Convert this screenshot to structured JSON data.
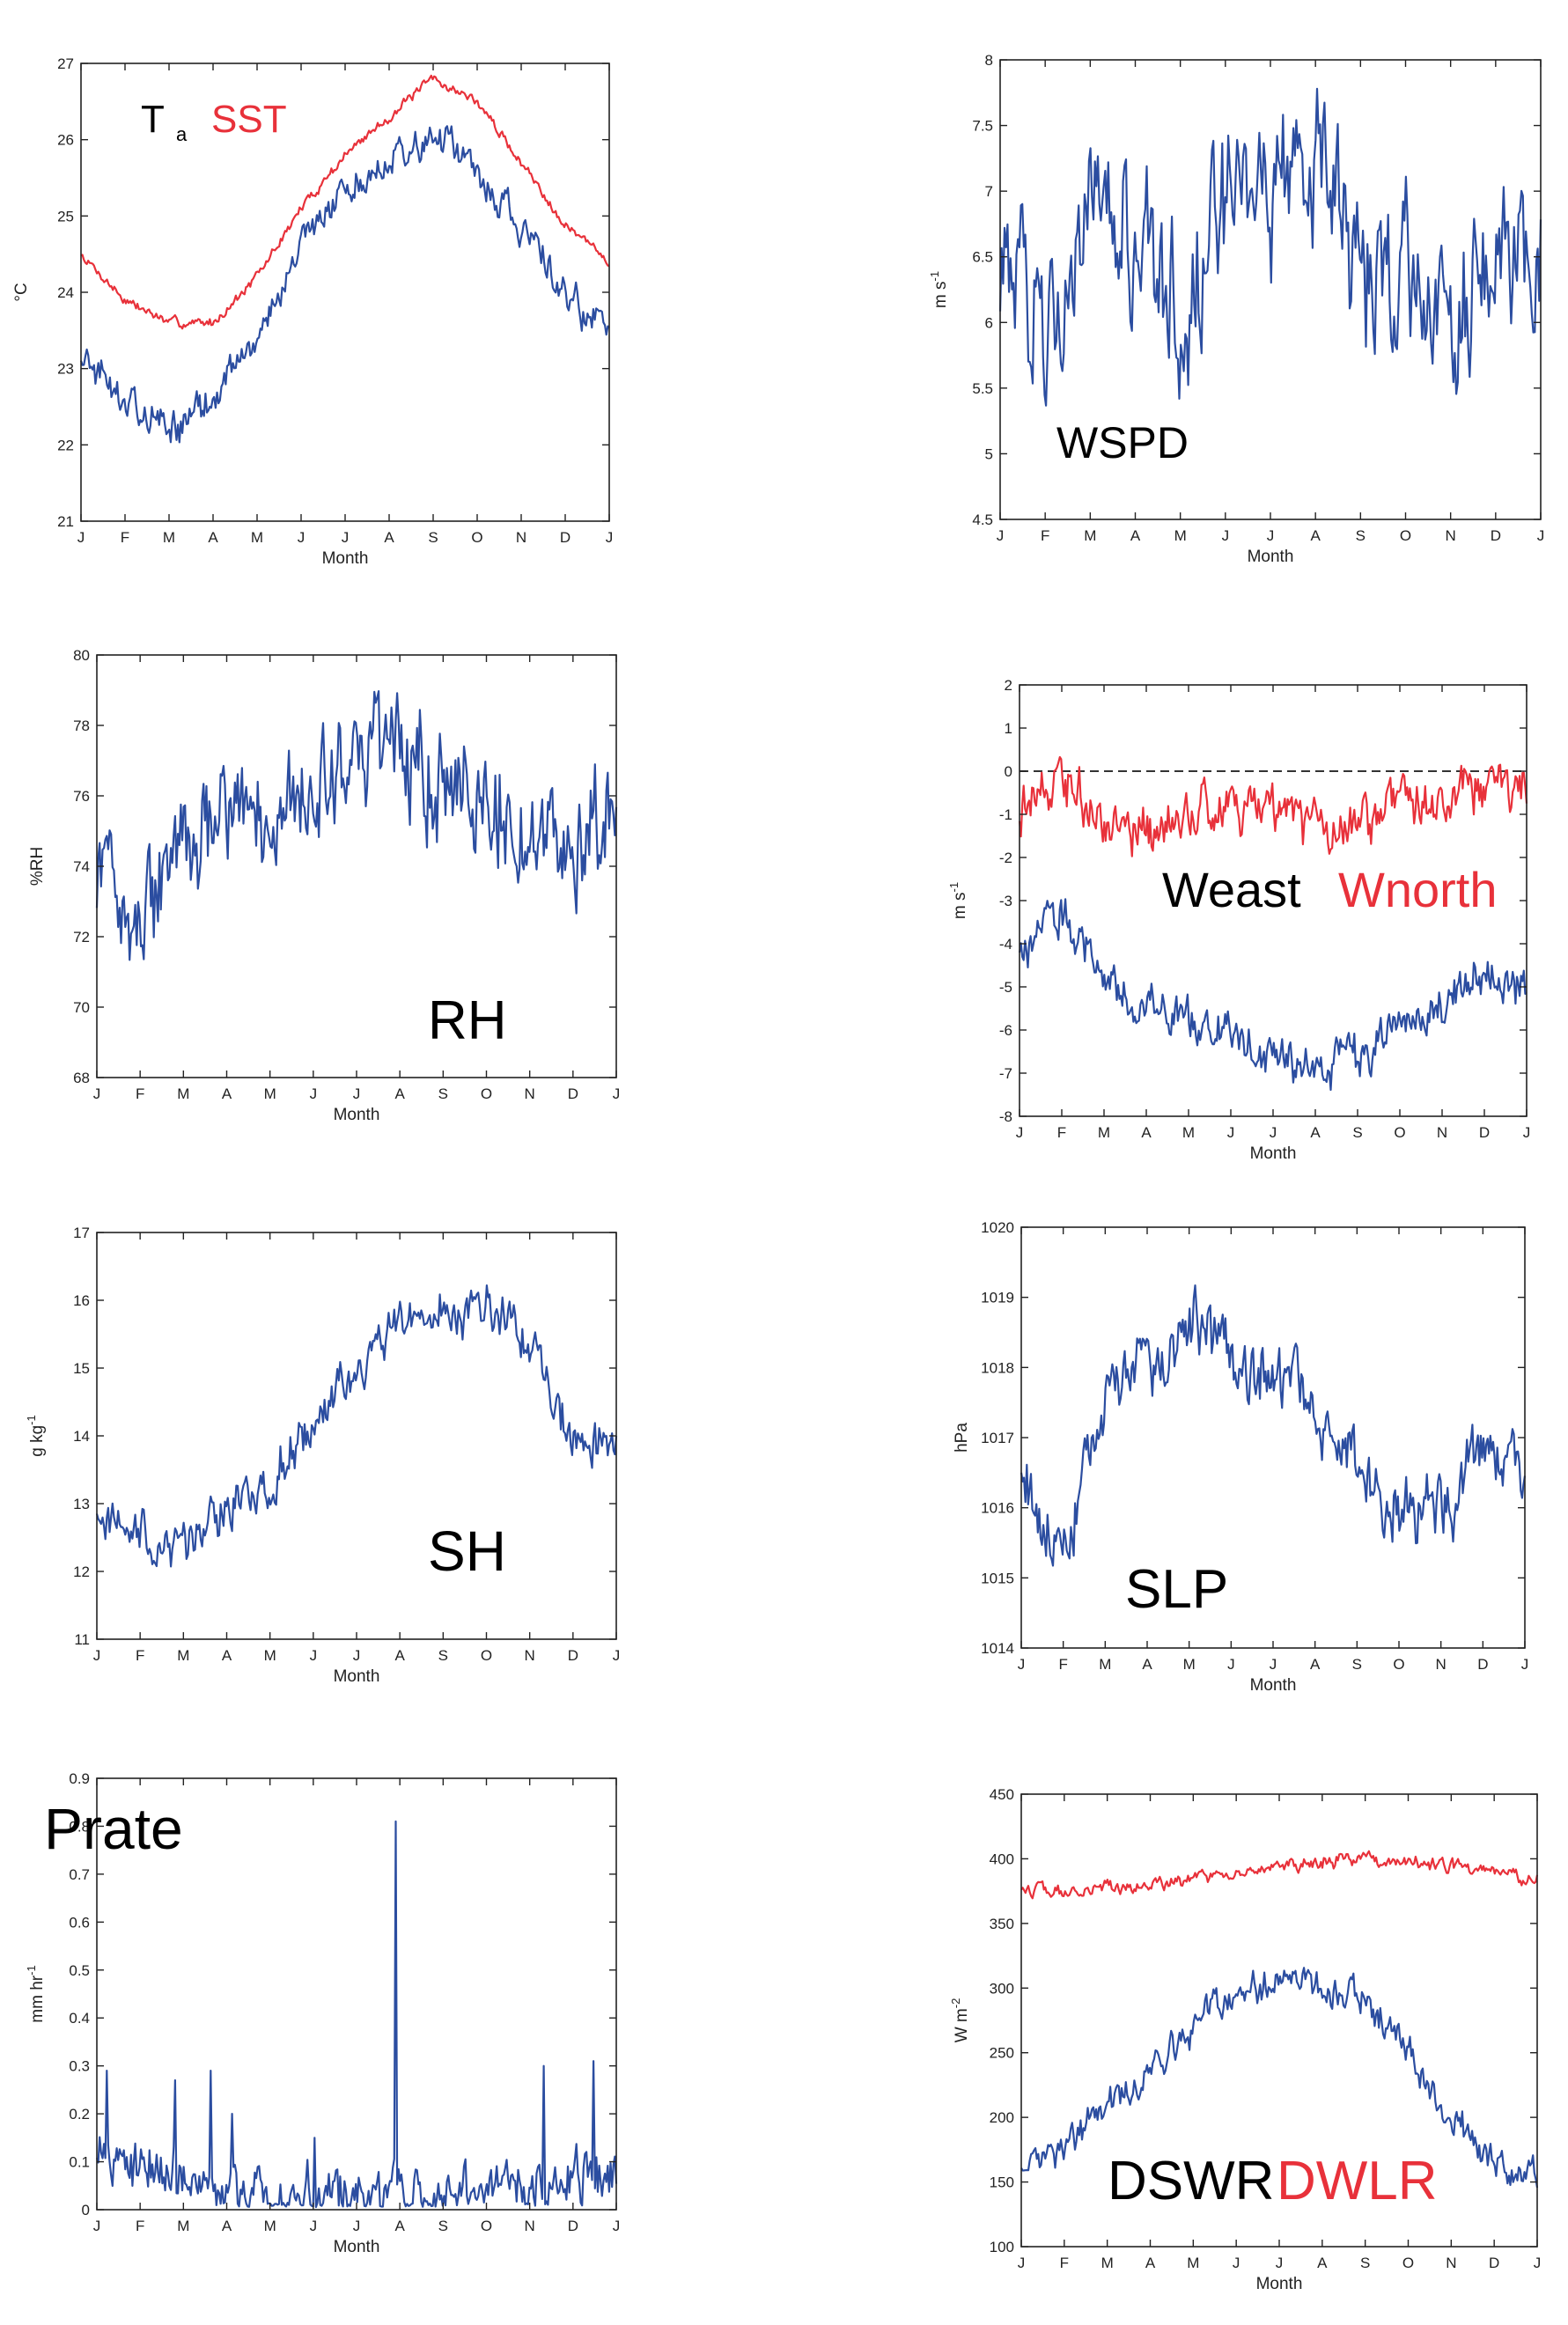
{
  "colors": {
    "blue": "#2B4DA0",
    "red": "#E8313A",
    "axis": "#222222",
    "text": "#000000"
  },
  "months": [
    "J",
    "F",
    "M",
    "A",
    "M",
    "J",
    "J",
    "A",
    "S",
    "O",
    "N",
    "D",
    "J"
  ],
  "panels": [
    {
      "id": "ta-sst",
      "xlabel": "Month",
      "ylabel": "°C",
      "ylabel_sup": "",
      "yticks": [
        "21",
        "22",
        "23",
        "24",
        "25",
        "26",
        "27"
      ],
      "label_parts": [
        {
          "text": "T",
          "color": "#000000"
        },
        {
          "text": "a",
          "color": "#000000",
          "sub": true
        },
        {
          "text": "SST",
          "color": "#E8313A"
        }
      ]
    },
    {
      "id": "wspd",
      "xlabel": "Month",
      "ylabel": "m s",
      "ylabel_sup": "-1",
      "yticks": [
        "4.5",
        "5",
        "5.5",
        "6",
        "6.5",
        "7",
        "7.5",
        "8"
      ],
      "label_parts": [
        {
          "text": "WSPD",
          "color": "#000000"
        }
      ]
    },
    {
      "id": "rh",
      "xlabel": "Month",
      "ylabel": "%RH",
      "ylabel_sup": "",
      "yticks": [
        "68",
        "70",
        "72",
        "74",
        "76",
        "78",
        "80"
      ],
      "label_parts": [
        {
          "text": "RH",
          "color": "#000000"
        }
      ]
    },
    {
      "id": "winds",
      "xlabel": "Month",
      "ylabel": "m s",
      "ylabel_sup": "-1",
      "yticks": [
        "-8",
        "-7",
        "-6",
        "-5",
        "-4",
        "-3",
        "-2",
        "-1",
        "0",
        "1",
        "2"
      ],
      "label_parts": [
        {
          "text": "Weast",
          "color": "#000000"
        },
        {
          "text": "Wnorth",
          "color": "#E8313A"
        }
      ]
    },
    {
      "id": "sh",
      "xlabel": "Month",
      "ylabel": "g kg",
      "ylabel_sup": "-1",
      "yticks": [
        "11",
        "12",
        "13",
        "14",
        "15",
        "16",
        "17"
      ],
      "label_parts": [
        {
          "text": "SH",
          "color": "#000000"
        }
      ]
    },
    {
      "id": "slp",
      "xlabel": "Month",
      "ylabel": "hPa",
      "ylabel_sup": "",
      "yticks": [
        "1014",
        "1015",
        "1016",
        "1017",
        "1018",
        "1019",
        "1020"
      ],
      "label_parts": [
        {
          "text": "SLP",
          "color": "#000000"
        }
      ]
    },
    {
      "id": "prate",
      "xlabel": "Month",
      "ylabel": "mm hr",
      "ylabel_sup": "-1",
      "yticks": [
        "0",
        "0.1",
        "0.2",
        "0.3",
        "0.4",
        "0.5",
        "0.6",
        "0.7",
        "0.8",
        "0.9"
      ],
      "label_parts": [
        {
          "text": "Prate",
          "color": "#000000"
        }
      ]
    },
    {
      "id": "rad",
      "xlabel": "Month",
      "ylabel": "W m",
      "ylabel_sup": "-2",
      "yticks": [
        "100",
        "150",
        "200",
        "250",
        "300",
        "350",
        "400",
        "450"
      ],
      "label_parts": [
        {
          "text": "DSWR",
          "color": "#000000"
        },
        {
          "text": "DWLR",
          "color": "#E8313A"
        }
      ]
    }
  ],
  "chart_data": [
    {
      "type": "line",
      "x_categories": [
        "J",
        "F",
        "M",
        "A",
        "M",
        "J",
        "J",
        "A",
        "S",
        "O",
        "N",
        "D",
        "J"
      ],
      "xlabel": "Month",
      "ylabel": "°C",
      "ylim": [
        21,
        27
      ],
      "series": [
        {
          "name": "SST",
          "color": "#E8313A",
          "noise": 0.05,
          "values": [
            24.5,
            23.9,
            23.6,
            23.6,
            24.2,
            25.1,
            25.8,
            26.3,
            26.8,
            26.5,
            25.7,
            24.9,
            24.4
          ]
        },
        {
          "name": "Ta",
          "color": "#2B4DA0",
          "noise": 0.18,
          "values": [
            23.2,
            22.6,
            22.2,
            22.6,
            23.4,
            24.6,
            25.4,
            25.8,
            26.0,
            25.6,
            24.8,
            24.0,
            23.5
          ]
        }
      ]
    },
    {
      "type": "line",
      "x_categories": [
        "J",
        "F",
        "M",
        "A",
        "M",
        "J",
        "J",
        "A",
        "S",
        "O",
        "N",
        "D",
        "J"
      ],
      "xlabel": "Month",
      "ylabel": "m s-1",
      "ylim": [
        4.5,
        8
      ],
      "series": [
        {
          "name": "WSPD",
          "color": "#2B4DA0",
          "noise": 0.45,
          "values": [
            6.4,
            6.1,
            6.8,
            6.5,
            6.2,
            6.7,
            7.1,
            7.2,
            6.4,
            6.4,
            6.1,
            6.6,
            6.5
          ]
        }
      ]
    },
    {
      "type": "line",
      "x_categories": [
        "J",
        "F",
        "M",
        "A",
        "M",
        "J",
        "J",
        "A",
        "S",
        "O",
        "N",
        "D",
        "J"
      ],
      "xlabel": "Month",
      "ylabel": "%RH",
      "ylim": [
        68,
        80
      ],
      "series": [
        {
          "name": "RH",
          "color": "#2B4DA0",
          "noise": 1.3,
          "values": [
            73.5,
            72.5,
            74.5,
            76.0,
            75.5,
            76.0,
            76.5,
            77.5,
            76.5,
            76.0,
            75.5,
            74.5,
            76.0
          ]
        }
      ]
    },
    {
      "type": "line",
      "x_categories": [
        "J",
        "F",
        "M",
        "A",
        "M",
        "J",
        "J",
        "A",
        "S",
        "O",
        "N",
        "D",
        "J"
      ],
      "xlabel": "Month",
      "ylabel": "m s-1",
      "ylim": [
        -8,
        2
      ],
      "series": [
        {
          "name": "Wnorth",
          "color": "#E8313A",
          "noise": 0.45,
          "values": [
            -1.0,
            0.0,
            -1.2,
            -1.4,
            -1.0,
            -0.8,
            -1.0,
            -1.3,
            -1.2,
            -0.8,
            -0.6,
            -0.4,
            -0.6
          ]
        },
        {
          "name": "Weast",
          "color": "#2B4DA0",
          "noise": 0.4,
          "values": [
            -4.2,
            -3.2,
            -4.8,
            -5.5,
            -5.8,
            -6.2,
            -6.8,
            -7.0,
            -6.6,
            -5.8,
            -5.4,
            -4.6,
            -5.0
          ]
        }
      ]
    },
    {
      "type": "line",
      "x_categories": [
        "J",
        "F",
        "M",
        "A",
        "M",
        "J",
        "J",
        "A",
        "S",
        "O",
        "N",
        "D",
        "J"
      ],
      "xlabel": "Month",
      "ylabel": "g kg-1",
      "ylim": [
        11,
        17
      ],
      "series": [
        {
          "name": "SH",
          "color": "#2B4DA0",
          "noise": 0.28,
          "values": [
            12.9,
            12.6,
            12.3,
            12.9,
            13.4,
            14.2,
            14.9,
            15.7,
            15.9,
            15.9,
            15.3,
            14.0,
            13.8
          ]
        }
      ]
    },
    {
      "type": "line",
      "x_categories": [
        "J",
        "F",
        "M",
        "A",
        "M",
        "J",
        "J",
        "A",
        "S",
        "O",
        "N",
        "D",
        "J"
      ],
      "xlabel": "Month",
      "ylabel": "hPa",
      "ylim": [
        1014,
        1020
      ],
      "series": [
        {
          "name": "SLP",
          "color": "#2B4DA0",
          "noise": 0.38,
          "values": [
            1016.5,
            1015.2,
            1017.5,
            1018.0,
            1018.6,
            1018.1,
            1018.0,
            1017.4,
            1016.5,
            1015.9,
            1016.0,
            1016.8,
            1016.6
          ]
        }
      ]
    },
    {
      "type": "line",
      "x_categories": [
        "J",
        "F",
        "M",
        "A",
        "M",
        "J",
        "J",
        "A",
        "S",
        "O",
        "N",
        "D",
        "J"
      ],
      "xlabel": "Month",
      "ylabel": "mm hr-1",
      "ylim": [
        0,
        0.9
      ],
      "series": [
        {
          "name": "Prate",
          "color": "#2B4DA0",
          "noise": 0.045,
          "values": [
            0.1,
            0.08,
            0.08,
            0.05,
            0.04,
            0.03,
            0.03,
            0.03,
            0.04,
            0.05,
            0.06,
            0.08,
            0.07
          ],
          "spikes": [
            [
              0.02,
              0.29
            ],
            [
              0.15,
              0.27
            ],
            [
              0.22,
              0.29
            ],
            [
              0.26,
              0.2
            ],
            [
              0.42,
              0.15
            ],
            [
              0.575,
              0.81
            ],
            [
              0.86,
              0.3
            ],
            [
              0.955,
              0.31
            ]
          ]
        }
      ]
    },
    {
      "type": "line",
      "x_categories": [
        "J",
        "F",
        "M",
        "A",
        "M",
        "J",
        "J",
        "A",
        "S",
        "O",
        "N",
        "D",
        "J"
      ],
      "xlabel": "Month",
      "ylabel": "W m-2",
      "ylim": [
        100,
        450
      ],
      "series": [
        {
          "name": "DWLR",
          "color": "#E8313A",
          "noise": 4,
          "values": [
            377,
            375,
            377,
            380,
            384,
            388,
            394,
            398,
            400,
            398,
            395,
            390,
            383
          ]
        },
        {
          "name": "DSWR",
          "color": "#2B4DA0",
          "noise": 10,
          "values": [
            160,
            175,
            205,
            238,
            270,
            298,
            306,
            300,
            290,
            250,
            200,
            165,
            150
          ]
        }
      ]
    }
  ]
}
